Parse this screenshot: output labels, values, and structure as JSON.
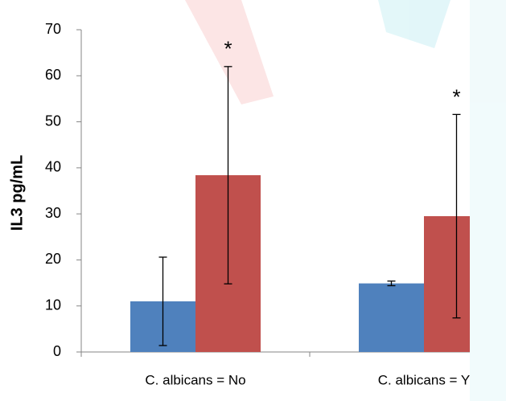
{
  "chart_data": {
    "type": "bar",
    "y_label": "IL3 pg/mL",
    "categories": [
      "C. albicans = No",
      "C. albicans = Y"
    ],
    "series": [
      {
        "color": "#4f81bd",
        "values": [
          11,
          14.9
        ],
        "errors": [
          9.6,
          0.5
        ]
      },
      {
        "color": "#c0504d",
        "values": [
          38.4,
          29.5
        ],
        "errors": [
          23.6,
          22.1
        ]
      }
    ],
    "annotations": [
      "*",
      "*"
    ],
    "ylim": [
      0,
      70
    ],
    "yticks": [
      0,
      10,
      20,
      30,
      40,
      50,
      60,
      70
    ],
    "grid": false
  }
}
